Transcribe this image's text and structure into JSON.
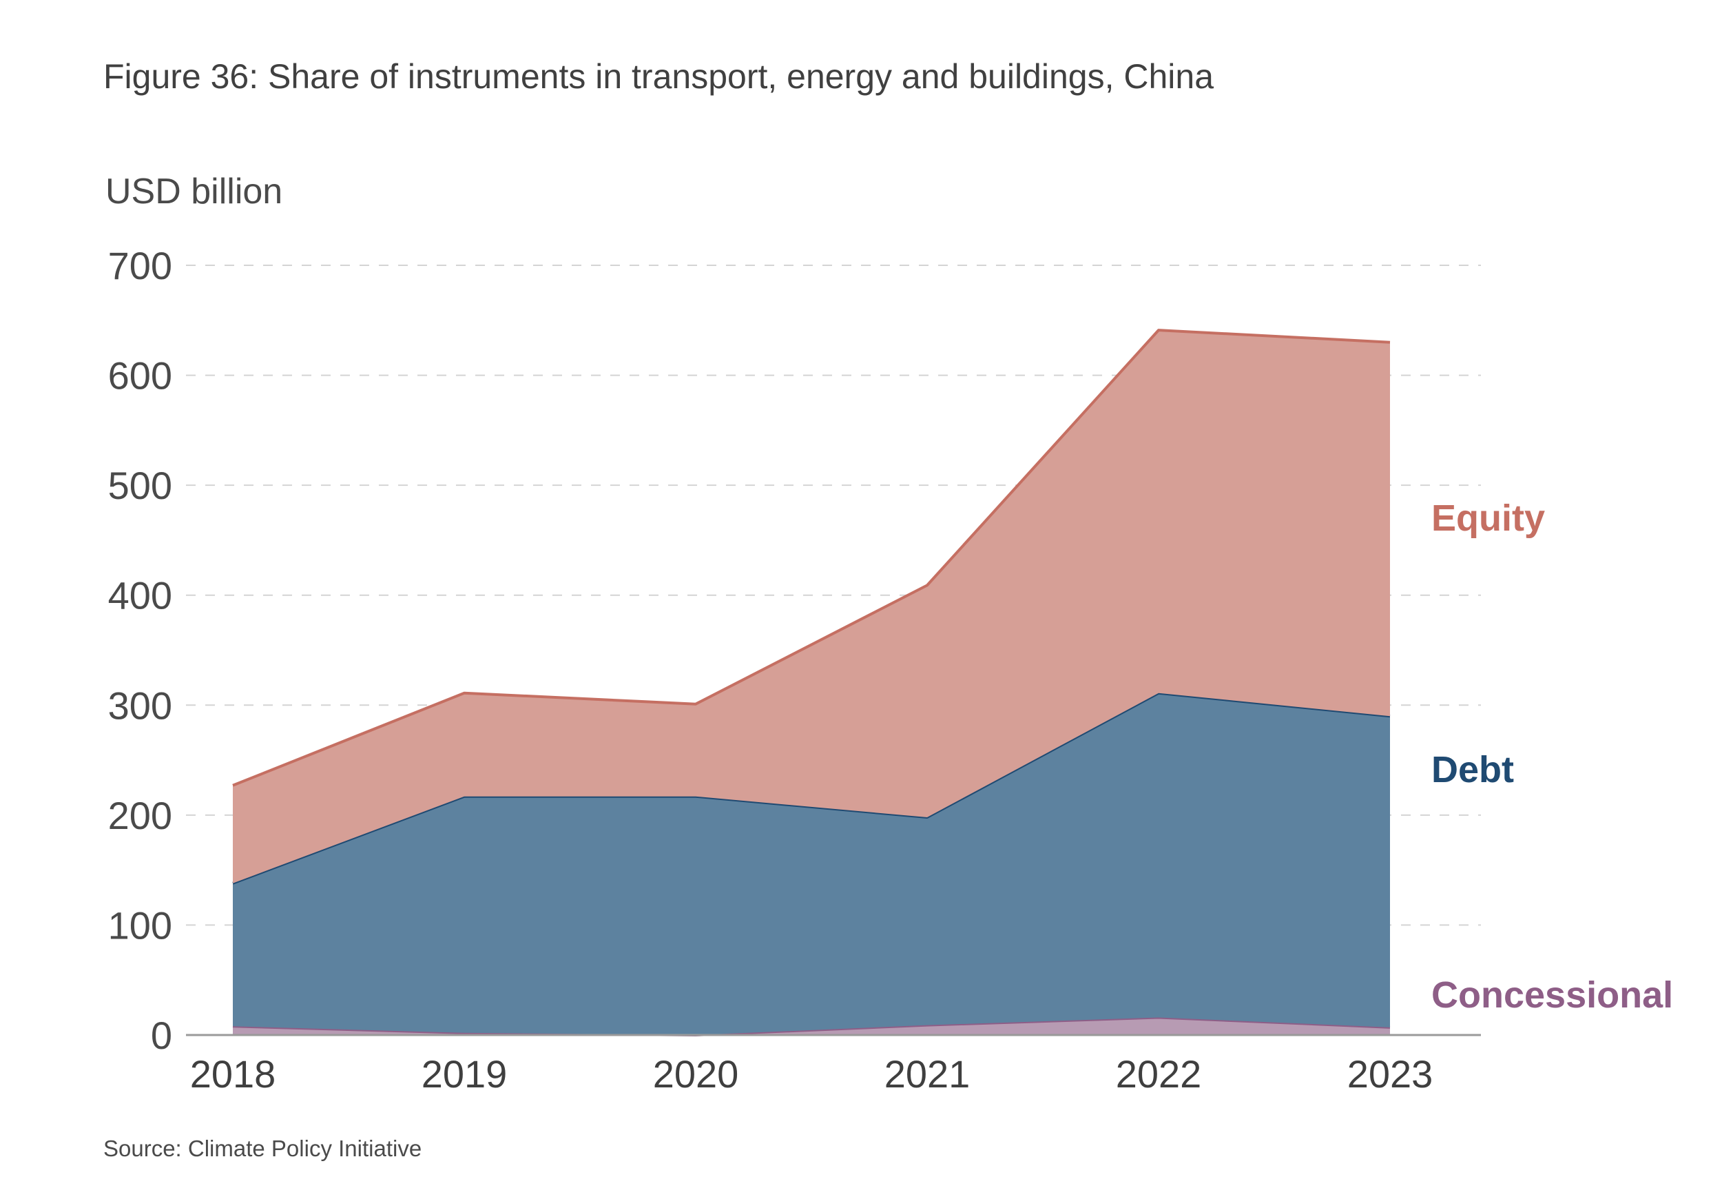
{
  "title": "Figure 36: Share of instruments in transport, energy and buildings, China",
  "source": "Source: Climate Policy Initiative",
  "chart_data": {
    "type": "area",
    "stacked": true,
    "title": "Figure 36: Share of instruments in transport, energy and buildings, China",
    "ylabel": "USD billion",
    "xlabel": "",
    "x": [
      "2018",
      "2019",
      "2020",
      "2021",
      "2022",
      "2023"
    ],
    "ylim": [
      0,
      700
    ],
    "yticks": [
      "0",
      "100",
      "200",
      "300",
      "400",
      "500",
      "600",
      "700"
    ],
    "grid": "horizontal dashed",
    "legend": "inline labels at right",
    "series": [
      {
        "name": "Concessional",
        "values": [
          8,
          2,
          0,
          9,
          16,
          7
        ],
        "color": "#8e5e87",
        "fill": "#b79bb3"
      },
      {
        "name": "Debt",
        "values": [
          130,
          215,
          217,
          189,
          295,
          283
        ],
        "color": "#1f4a72",
        "fill": "#5d829f"
      },
      {
        "name": "Equity",
        "values": [
          89,
          94,
          84,
          211,
          330,
          340
        ],
        "color": "#c56f62",
        "fill": "#d69f96"
      }
    ],
    "stacked_totals": [
      227,
      311,
      301,
      409,
      641,
      630
    ]
  }
}
